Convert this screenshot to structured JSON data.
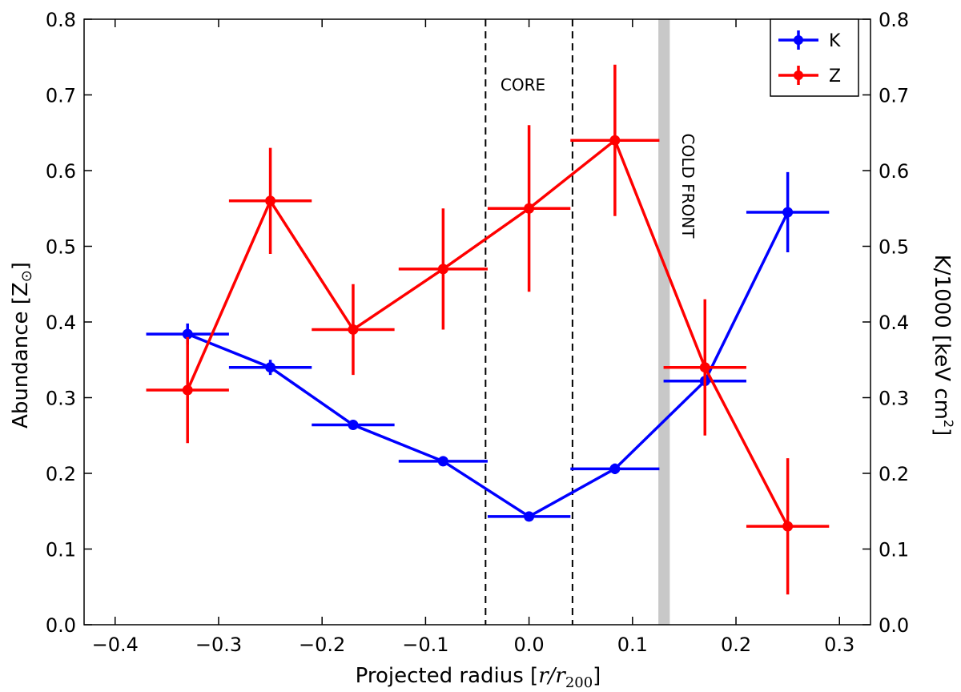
{
  "chart_data": {
    "type": "line",
    "title": "",
    "xlabel_text": "Projected radius [",
    "xlabel_math": "r/r",
    "xlabel_sub": "200",
    "xlabel_close": "]",
    "ylabel_left_text": "Abundance [Z",
    "ylabel_left_sub": "⊙",
    "ylabel_left_close": "]",
    "ylabel_right_text": "K/1000 [keV cm",
    "ylabel_right_sup": "2",
    "ylabel_right_close": "]",
    "xlim": [
      -0.43,
      0.33
    ],
    "ylim": [
      0.0,
      0.8
    ],
    "ylim_right": [
      0.0,
      0.8
    ],
    "xticks": [
      -0.4,
      -0.3,
      -0.2,
      -0.1,
      0.0,
      0.1,
      0.2,
      0.3
    ],
    "xtick_labels": [
      "−0.4",
      "−0.3",
      "−0.2",
      "−0.1",
      "0.0",
      "0.1",
      "0.2",
      "0.3"
    ],
    "yticks": [
      0.0,
      0.1,
      0.2,
      0.3,
      0.4,
      0.5,
      0.6,
      0.7,
      0.8
    ],
    "ytick_labels": [
      "0.0",
      "0.1",
      "0.2",
      "0.3",
      "0.4",
      "0.5",
      "0.6",
      "0.7",
      "0.8"
    ],
    "series": [
      {
        "name": "K",
        "color": "#0000ff",
        "x": [
          -0.33,
          -0.25,
          -0.17,
          -0.083,
          0.0,
          0.083,
          0.17,
          0.25
        ],
        "y": [
          0.384,
          0.34,
          0.264,
          0.216,
          0.143,
          0.206,
          0.322,
          0.545
        ],
        "xerr": [
          0.04,
          0.04,
          0.04,
          0.043,
          0.04,
          0.043,
          0.04,
          0.04
        ],
        "yerr": [
          0.014,
          0.01,
          0.006,
          0.005,
          0.004,
          0.007,
          0.01,
          0.053
        ]
      },
      {
        "name": "Z",
        "color": "#ff0000",
        "x": [
          -0.33,
          -0.25,
          -0.17,
          -0.083,
          0.0,
          0.083,
          0.17,
          0.25
        ],
        "y": [
          0.31,
          0.56,
          0.39,
          0.47,
          0.55,
          0.64,
          0.34,
          0.13
        ],
        "xerr": [
          0.04,
          0.04,
          0.04,
          0.043,
          0.04,
          0.043,
          0.04,
          0.04
        ],
        "yerr": [
          0.07,
          0.07,
          0.06,
          0.08,
          0.11,
          0.1,
          0.09,
          0.09
        ]
      }
    ],
    "vlines": [
      -0.042,
      0.042
    ],
    "cold_front_band": [
      0.125,
      0.136
    ],
    "annotations": {
      "core": "CORE",
      "cold_front": "COLD FRONT"
    },
    "legend": {
      "location": "top-right",
      "entries": [
        "K",
        "Z"
      ]
    },
    "colors": {
      "band": "#c8c8c8"
    }
  }
}
